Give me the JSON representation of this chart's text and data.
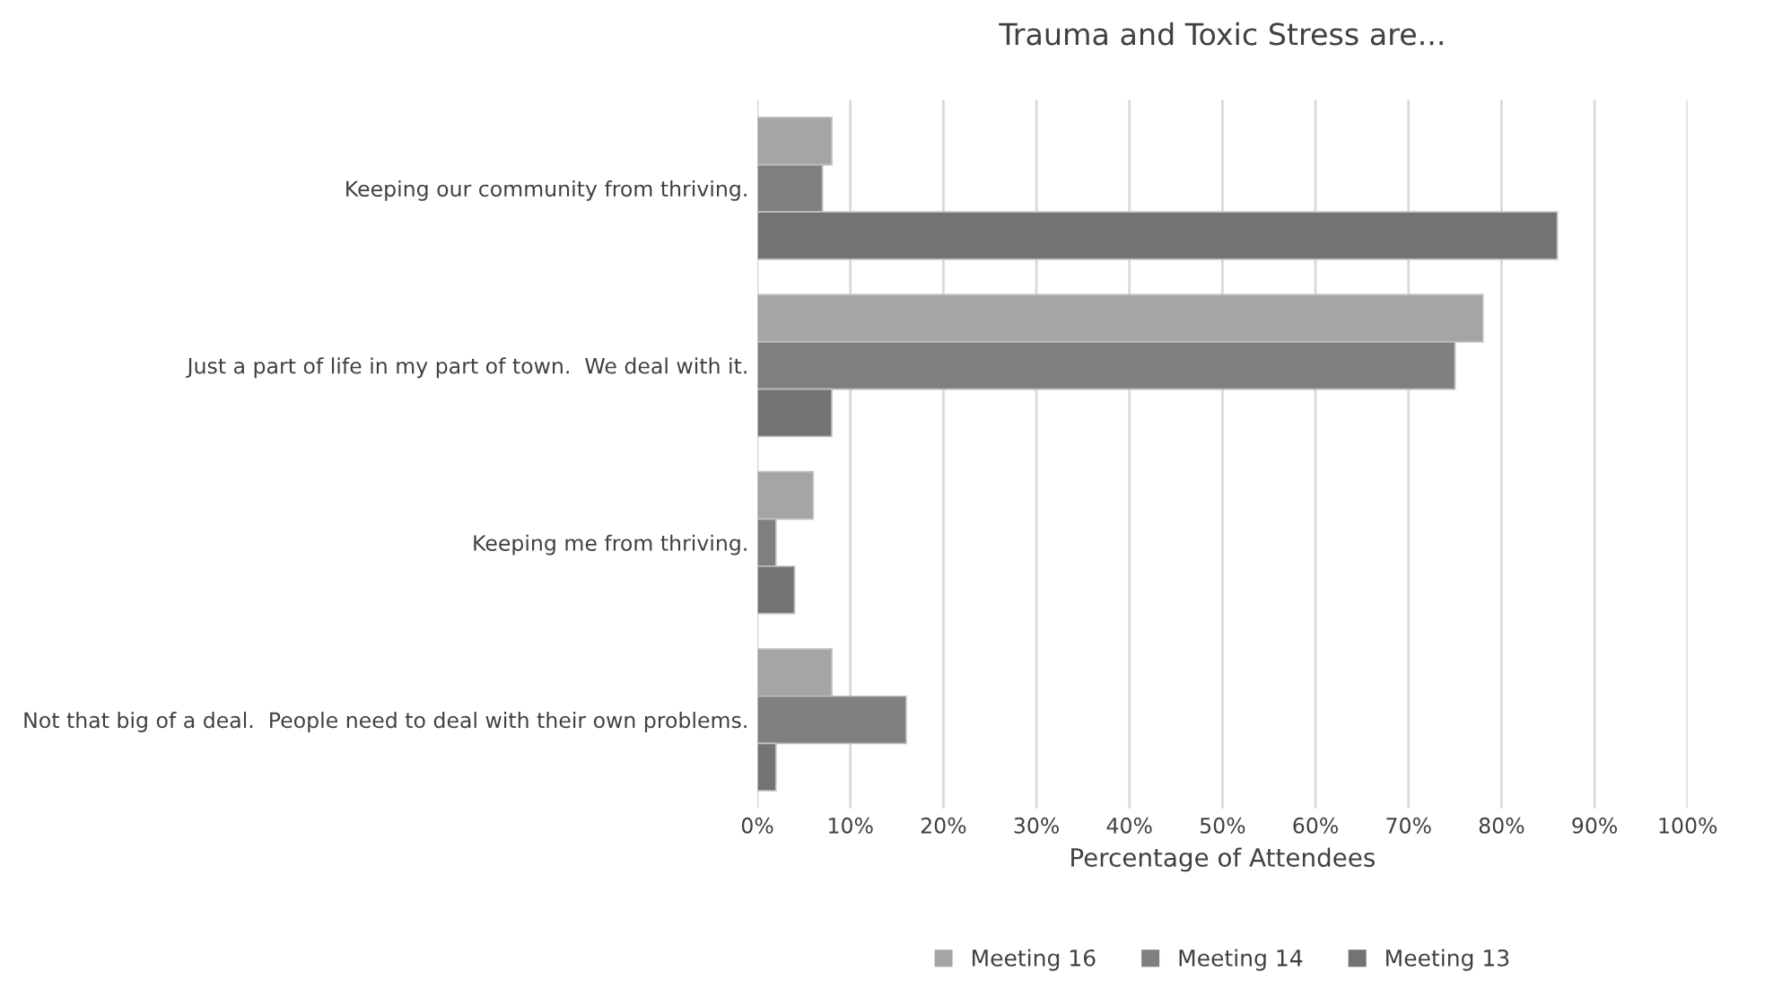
{
  "chart_data": {
    "type": "bar",
    "orientation": "horizontal",
    "title": "Trauma and Toxic Stress are...",
    "xlabel": "Percentage of Attendees",
    "categories": [
      "Keeping our community from thriving.",
      "Just a part of life in my part of town.  We deal with it.",
      "Keeping me from thriving.",
      "Not that big of a deal.  People need to deal with their own problems."
    ],
    "series": [
      {
        "name": "Meeting 16",
        "color": "#a5a5a5",
        "values": [
          8,
          78,
          6,
          8
        ]
      },
      {
        "name": "Meeting 14",
        "color": "#7f7f7f",
        "values": [
          7,
          75,
          2,
          16
        ]
      },
      {
        "name": "Meeting 13",
        "color": "#737373",
        "values": [
          86,
          8,
          4,
          2
        ]
      }
    ],
    "xlim": [
      0,
      100
    ],
    "xticks": [
      {
        "value": 0,
        "label": "0%"
      },
      {
        "value": 10,
        "label": "10%"
      },
      {
        "value": 20,
        "label": "20%"
      },
      {
        "value": 30,
        "label": "30%"
      },
      {
        "value": 40,
        "label": "40%"
      },
      {
        "value": 50,
        "label": "50%"
      },
      {
        "value": 60,
        "label": "60%"
      },
      {
        "value": 70,
        "label": "70%"
      },
      {
        "value": 80,
        "label": "80%"
      },
      {
        "value": 90,
        "label": "90%"
      },
      {
        "value": 100,
        "label": "100%"
      }
    ],
    "grid": "x",
    "legend": "bottom"
  }
}
